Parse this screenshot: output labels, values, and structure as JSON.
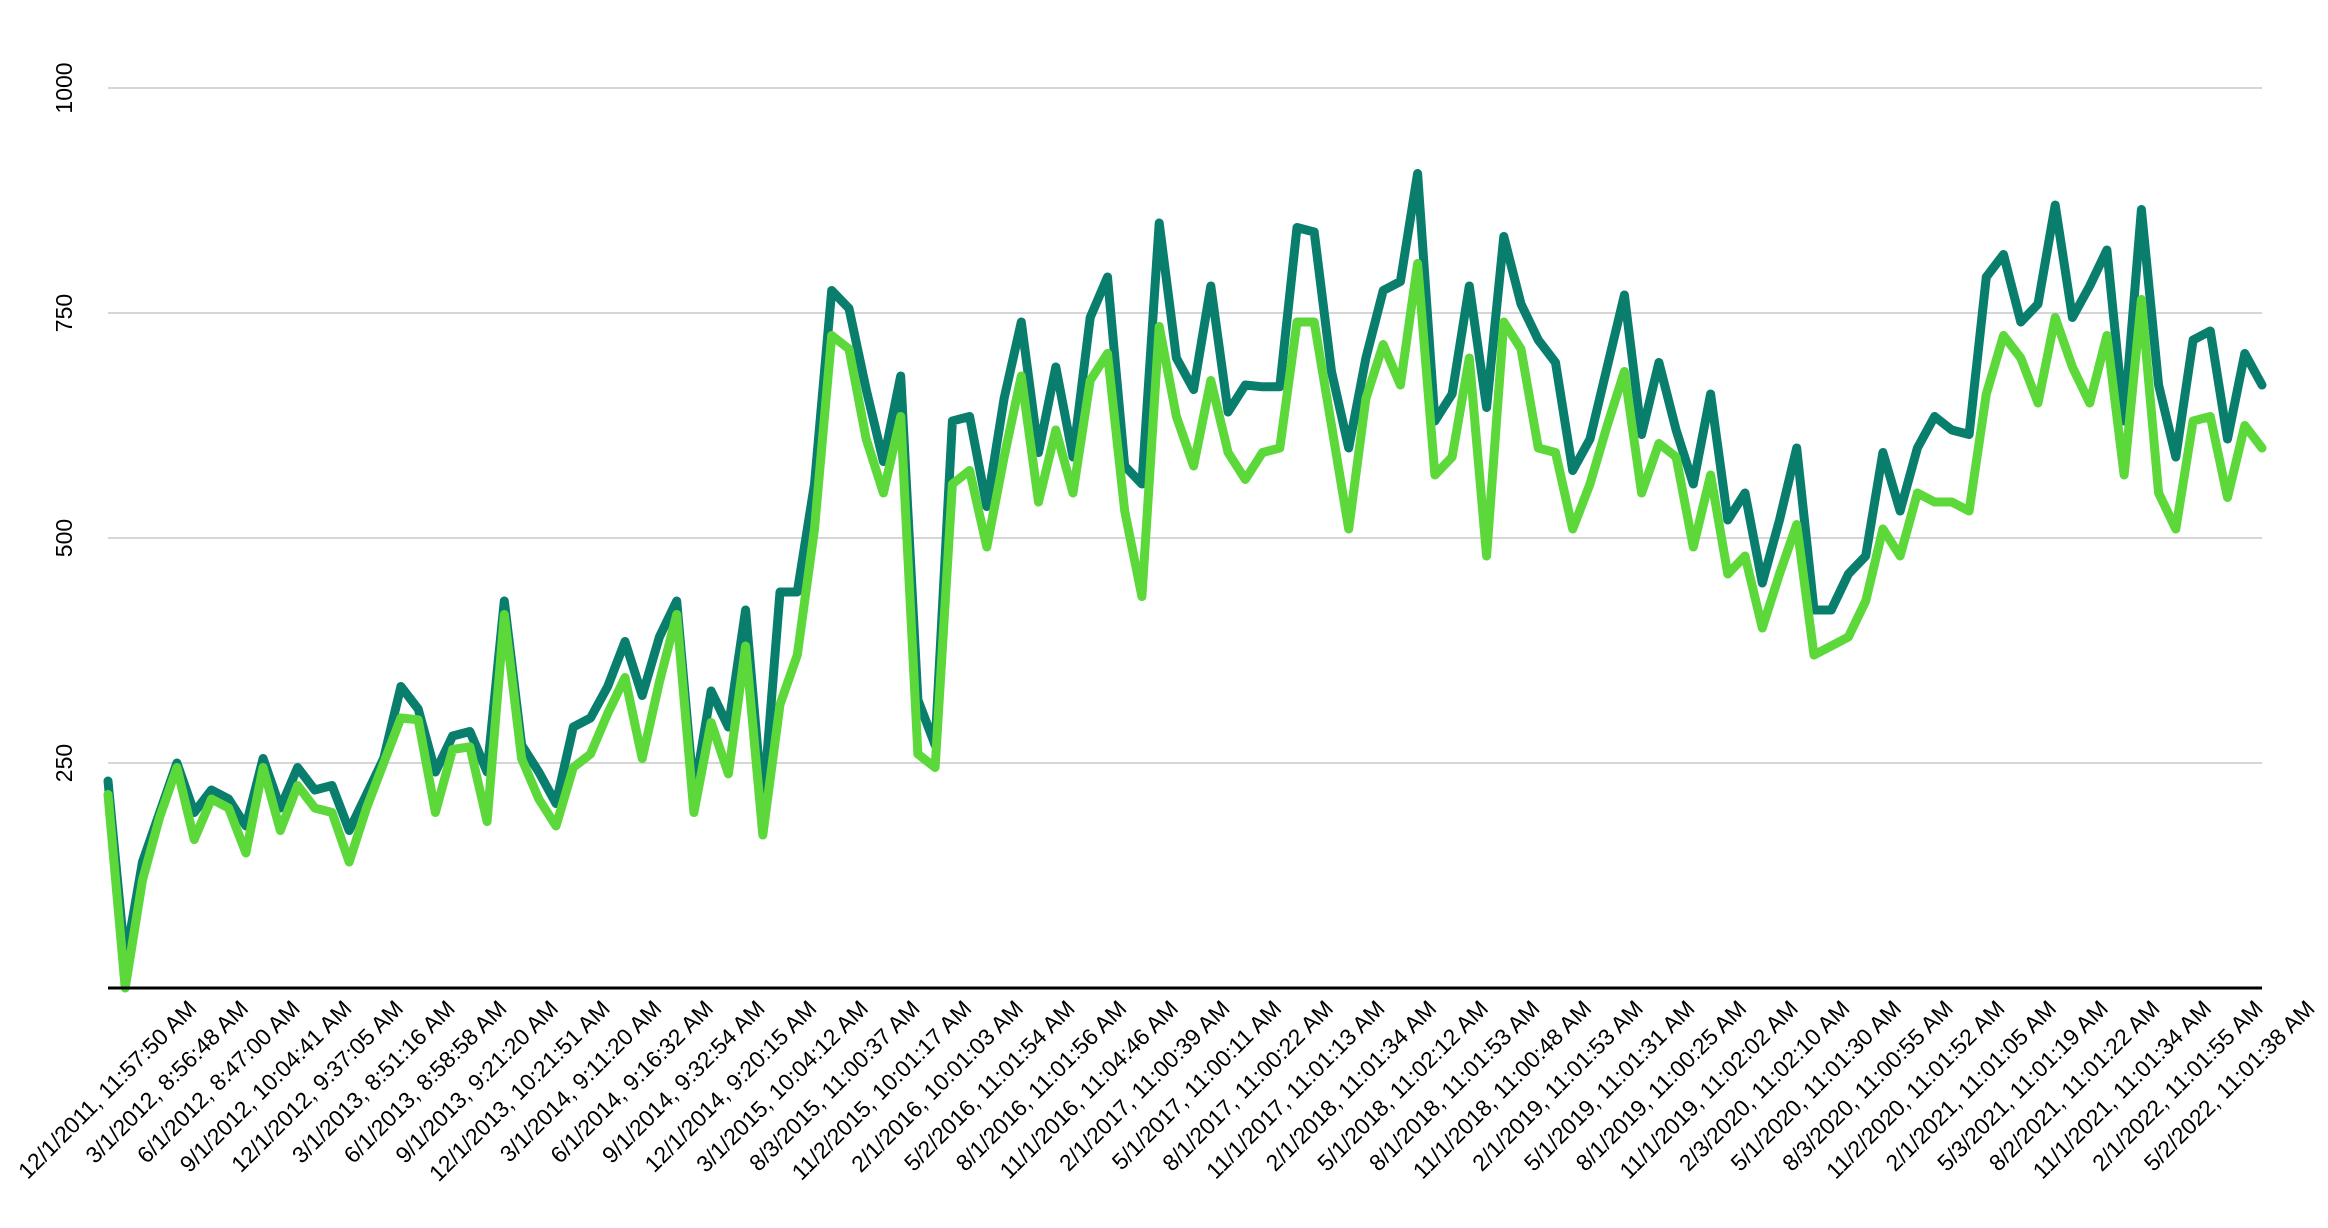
{
  "chart_data": {
    "type": "line",
    "title": "",
    "xlabel": "",
    "ylabel": "",
    "ylim": [
      0,
      1000
    ],
    "grid": true,
    "legend": "none",
    "y_ticks": [
      "250",
      "500",
      "750",
      "1000"
    ],
    "x_tick_labels": [
      "12/1/2011, 11:57:50 AM",
      "3/1/2012, 8:56:48 AM",
      "6/1/2012, 8:47:00 AM",
      "9/1/2012, 10:04:41 AM",
      "12/1/2012, 9:37:05 AM",
      "3/1/2013, 8:51:16 AM",
      "6/1/2013, 8:58:58 AM",
      "9/1/2013, 9:21:20 AM",
      "12/1/2013, 10:21:51 AM",
      "3/1/2014, 9:11:20 AM",
      "6/1/2014, 9:16:32 AM",
      "9/1/2014, 9:32:54 AM",
      "12/1/2014, 9:20:15 AM",
      "3/1/2015, 10:04:12 AM",
      "8/3/2015, 11:00:37 AM",
      "11/2/2015, 10:01:17 AM",
      "2/1/2016, 10:01:03 AM",
      "5/2/2016, 11:01:54 AM",
      "8/1/2016, 11:01:56 AM",
      "11/1/2016, 11:04:46 AM",
      "2/1/2017, 11:00:39 AM",
      "5/1/2017, 11:00:11 AM",
      "8/1/2017, 11:00:22 AM",
      "11/1/2017, 11:01:13 AM",
      "2/1/2018, 11:01:34 AM",
      "5/1/2018, 11:02:12 AM",
      "8/1/2018, 11:01:53 AM",
      "11/1/2018, 11:00:48 AM",
      "2/1/2019, 11:01:53 AM",
      "5/1/2019, 11:01:31 AM",
      "8/1/2019, 11:00:25 AM",
      "11/1/2019, 11:02:02 AM",
      "2/3/2020, 11:02:10 AM",
      "5/1/2020, 11:01:30 AM",
      "8/3/2020, 11:00:55 AM",
      "11/2/2020, 11:01:52 AM",
      "2/1/2021, 11:01:05 AM",
      "5/3/2021, 11:01:19 AM",
      "8/2/2021, 11:01:22 AM",
      "11/1/2021, 11:01:34 AM",
      "2/1/2022, 11:01:55 AM",
      "5/2/2022, 11:01:38 AM"
    ],
    "series": [
      {
        "color": "#0a7e6d",
        "values": [
          230,
          30,
          140,
          195,
          250,
          195,
          220,
          210,
          180,
          255,
          200,
          245,
          220,
          225,
          175,
          215,
          255,
          335,
          310,
          240,
          280,
          285,
          240,
          430,
          270,
          240,
          205,
          290,
          300,
          335,
          385,
          325,
          390,
          430,
          215,
          330,
          290,
          420,
          200,
          440,
          440,
          560,
          775,
          755,
          665,
          585,
          680,
          320,
          270,
          630,
          635,
          535,
          655,
          740,
          595,
          690,
          590,
          745,
          790,
          580,
          560,
          850,
          700,
          665,
          780,
          640,
          670,
          668,
          668,
          845,
          840,
          685,
          600,
          700,
          775,
          785,
          905,
          630,
          660,
          780,
          645,
          835,
          760,
          720,
          695,
          575,
          610,
          690,
          770,
          615,
          695,
          620,
          560,
          660,
          520,
          550,
          450,
          520,
          600,
          420,
          420,
          460,
          480,
          595,
          530,
          600,
          635,
          620,
          615,
          790,
          815,
          740,
          760,
          870,
          745,
          780,
          820,
          630,
          865,
          670,
          590,
          720,
          730,
          610,
          705,
          670
        ]
      },
      {
        "color": "#5cd83a",
        "values": [
          215,
          0,
          120,
          190,
          245,
          165,
          210,
          200,
          150,
          245,
          175,
          225,
          200,
          195,
          140,
          200,
          250,
          300,
          298,
          195,
          265,
          268,
          185,
          415,
          255,
          210,
          180,
          245,
          260,
          305,
          345,
          255,
          340,
          415,
          195,
          295,
          238,
          380,
          170,
          315,
          370,
          510,
          725,
          710,
          610,
          550,
          635,
          260,
          245,
          560,
          575,
          490,
          590,
          680,
          540,
          620,
          550,
          675,
          705,
          530,
          435,
          735,
          635,
          580,
          675,
          595,
          565,
          595,
          600,
          740,
          740,
          625,
          510,
          655,
          715,
          670,
          805,
          570,
          590,
          700,
          480,
          740,
          710,
          600,
          595,
          510,
          560,
          625,
          685,
          550,
          605,
          590,
          490,
          570,
          460,
          480,
          400,
          460,
          515,
          370,
          380,
          390,
          430,
          510,
          480,
          550,
          540,
          540,
          530,
          660,
          725,
          700,
          650,
          745,
          690,
          650,
          725,
          570,
          765,
          550,
          510,
          630,
          635,
          545,
          625,
          600
        ]
      }
    ]
  }
}
